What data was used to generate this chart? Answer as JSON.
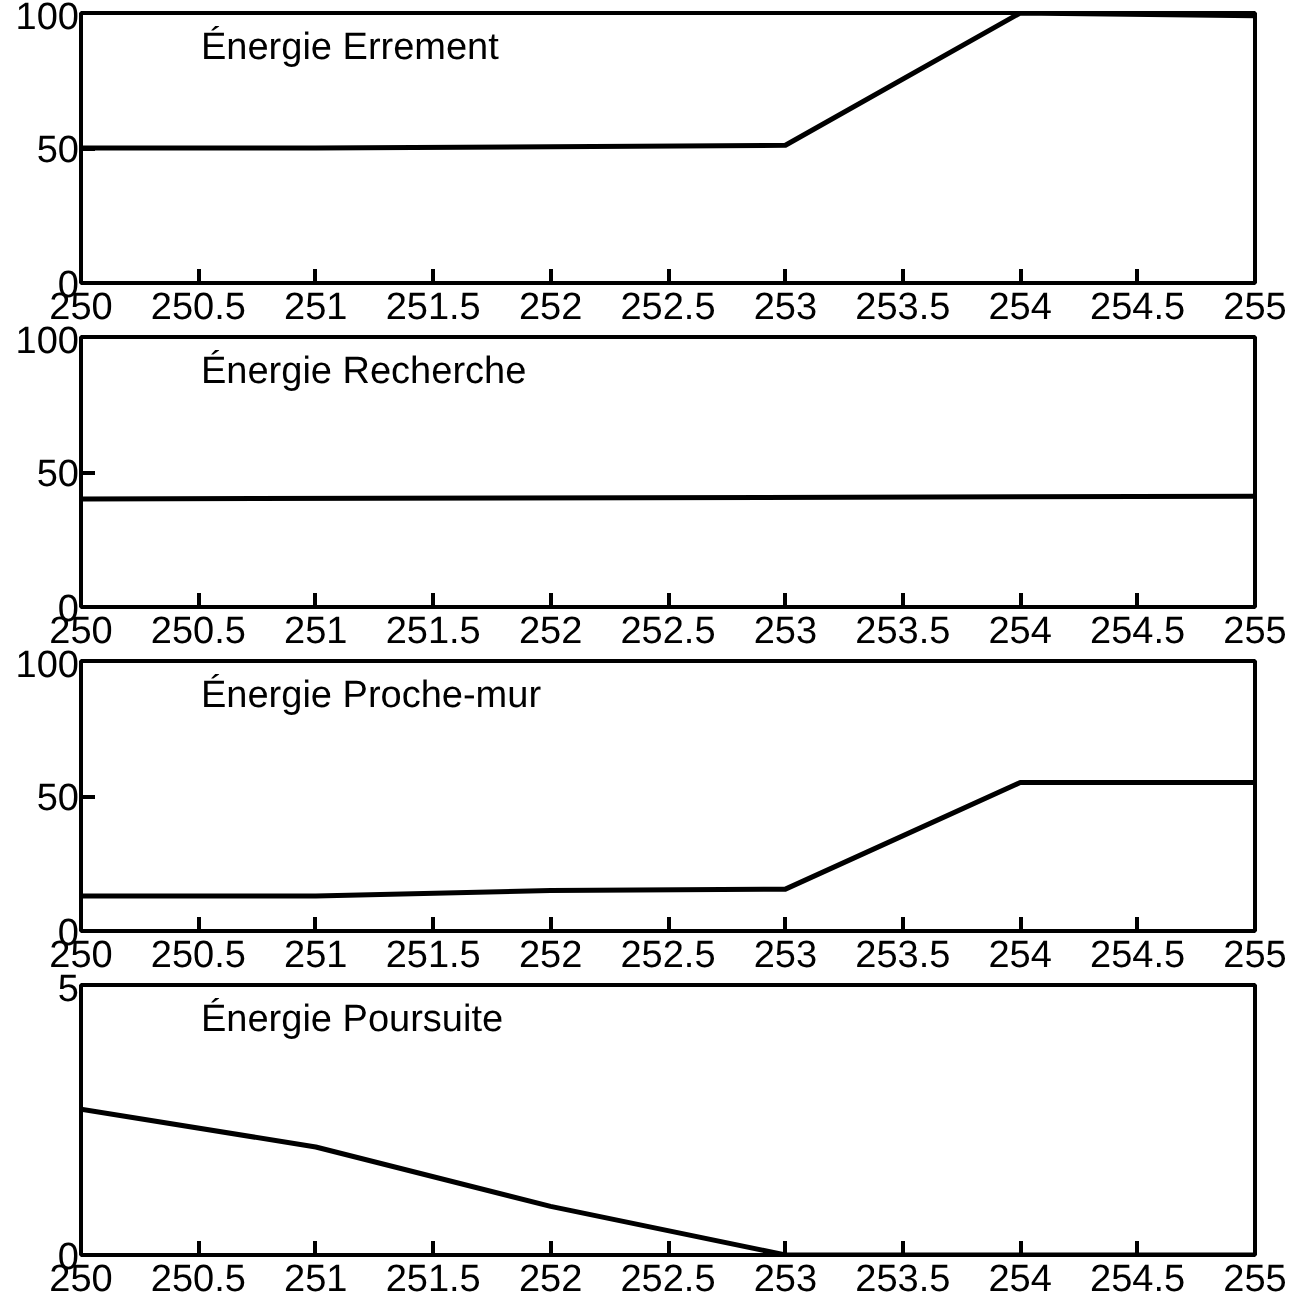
{
  "chart_data": [
    {
      "type": "line",
      "title": "Énergie Errement",
      "x": [
        250,
        251,
        252,
        253,
        254,
        255
      ],
      "series": [
        {
          "color": "#000000",
          "values": [
            50,
            50,
            50.5,
            51,
            100,
            99
          ]
        }
      ],
      "xlim": [
        250,
        255
      ],
      "ylim": [
        0,
        100
      ],
      "xticks": [
        250,
        250.5,
        251,
        251.5,
        252,
        252.5,
        253,
        253.5,
        254,
        254.5,
        255
      ],
      "yticks": [
        0,
        50,
        100
      ],
      "grid": false
    },
    {
      "type": "line",
      "title": "Énergie Recherche",
      "x": [
        250,
        255
      ],
      "series": [
        {
          "color": "#000000",
          "values": [
            40,
            41
          ]
        }
      ],
      "xlim": [
        250,
        255
      ],
      "ylim": [
        0,
        100
      ],
      "xticks": [
        250,
        250.5,
        251,
        251.5,
        252,
        252.5,
        253,
        253.5,
        254,
        254.5,
        255
      ],
      "yticks": [
        0,
        50,
        100
      ],
      "grid": false
    },
    {
      "type": "line",
      "title": "Énergie Proche-mur",
      "x": [
        250,
        251,
        252,
        253,
        254,
        255
      ],
      "series": [
        {
          "color": "#000000",
          "values": [
            13,
            13,
            15,
            15.5,
            55,
            55
          ]
        }
      ],
      "xlim": [
        250,
        255
      ],
      "ylim": [
        0,
        100
      ],
      "xticks": [
        250,
        250.5,
        251,
        251.5,
        252,
        252.5,
        253,
        253.5,
        254,
        254.5,
        255
      ],
      "yticks": [
        0,
        50,
        100
      ],
      "grid": false
    },
    {
      "type": "line",
      "title": "Énergie Poursuite",
      "x": [
        250,
        251,
        252,
        253,
        254,
        255
      ],
      "series": [
        {
          "color": "#000000",
          "values": [
            2.7,
            2.0,
            0.9,
            0,
            0,
            0
          ]
        }
      ],
      "xlim": [
        250,
        255
      ],
      "ylim": [
        0,
        5
      ],
      "xticks": [
        250,
        250.5,
        251,
        251.5,
        252,
        252.5,
        253,
        253.5,
        254,
        254.5,
        255
      ],
      "yticks": [
        0,
        5
      ],
      "grid": false
    }
  ]
}
